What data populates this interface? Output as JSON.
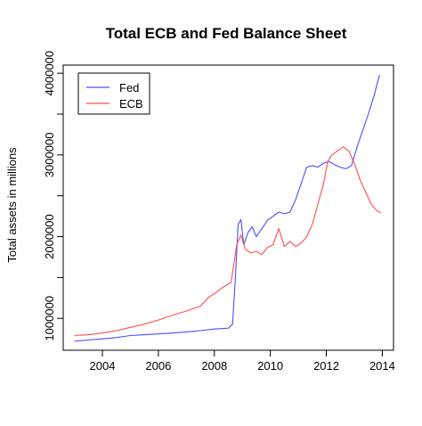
{
  "chart_data": {
    "type": "line",
    "title": "Total ECB and Fed Balance Sheet",
    "xlabel": "",
    "ylabel": "Total assets in millions",
    "xlim": [
      2002.6,
      2014.4
    ],
    "ylim": [
      610000,
      4100000
    ],
    "x_ticks": [
      2004,
      2006,
      2008,
      2010,
      2012,
      2014
    ],
    "y_ticks": [
      1000000,
      2000000,
      3000000,
      4000000
    ],
    "grid": false,
    "legend_position": "top-left",
    "series": [
      {
        "name": "Fed",
        "color": "#4d4dff",
        "x": [
          2003.0,
          2003.5,
          2004.0,
          2004.5,
          2005.0,
          2005.5,
          2006.0,
          2006.5,
          2007.0,
          2007.5,
          2008.0,
          2008.5,
          2008.65,
          2008.75,
          2008.85,
          2008.95,
          2009.05,
          2009.2,
          2009.35,
          2009.5,
          2009.7,
          2009.9,
          2010.1,
          2010.3,
          2010.5,
          2010.7,
          2010.9,
          2011.1,
          2011.3,
          2011.5,
          2011.7,
          2011.9,
          2012.1,
          2012.3,
          2012.5,
          2012.7,
          2012.9,
          2013.1,
          2013.3,
          2013.5,
          2013.7,
          2013.9
        ],
        "y": [
          720000,
          735000,
          750000,
          765000,
          790000,
          800000,
          810000,
          820000,
          835000,
          850000,
          870000,
          880000,
          930000,
          1500000,
          2150000,
          2210000,
          1900000,
          2050000,
          2120000,
          2000000,
          2100000,
          2200000,
          2250000,
          2300000,
          2280000,
          2300000,
          2450000,
          2650000,
          2850000,
          2870000,
          2850000,
          2900000,
          2920000,
          2880000,
          2850000,
          2830000,
          2870000,
          3100000,
          3300000,
          3500000,
          3720000,
          3980000
        ]
      },
      {
        "name": "ECB",
        "color": "#ff4d4d",
        "x": [
          2003.0,
          2003.5,
          2004.0,
          2004.5,
          2005.0,
          2005.5,
          2006.0,
          2006.5,
          2007.0,
          2007.5,
          2007.8,
          2008.0,
          2008.3,
          2008.6,
          2008.8,
          2008.95,
          2009.1,
          2009.3,
          2009.5,
          2009.7,
          2009.9,
          2010.1,
          2010.3,
          2010.5,
          2010.7,
          2010.9,
          2011.1,
          2011.3,
          2011.5,
          2011.7,
          2011.9,
          2012.05,
          2012.2,
          2012.4,
          2012.6,
          2012.8,
          2013.0,
          2013.2,
          2013.4,
          2013.6,
          2013.8,
          2013.95
        ],
        "y": [
          790000,
          800000,
          820000,
          850000,
          890000,
          930000,
          980000,
          1040000,
          1090000,
          1150000,
          1260000,
          1300000,
          1380000,
          1440000,
          1900000,
          2020000,
          1850000,
          1800000,
          1820000,
          1780000,
          1870000,
          1900000,
          2100000,
          1880000,
          1940000,
          1880000,
          1920000,
          2000000,
          2150000,
          2400000,
          2650000,
          2920000,
          3000000,
          3050000,
          3100000,
          3050000,
          2900000,
          2700000,
          2550000,
          2400000,
          2320000,
          2290000
        ]
      }
    ]
  }
}
